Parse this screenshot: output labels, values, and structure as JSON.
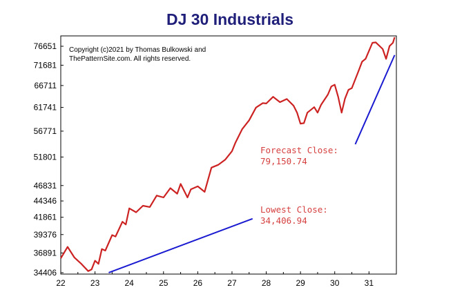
{
  "chart_data": {
    "type": "line",
    "title": "DJ 30 Industrials",
    "copyright": [
      "Copyright (c)2021 by Thomas Bulkowski and",
      "ThePatternSite.com. All rights reserved."
    ],
    "x_tick_labels": [
      "22",
      "23",
      "24",
      "25",
      "26",
      "27",
      "28",
      "29",
      "30",
      "31"
    ],
    "y_tick_labels": [
      "76651",
      "71681",
      "66711",
      "61741",
      "56771",
      "51801",
      "46831",
      "44346",
      "41861",
      "39376",
      "36891",
      "34406"
    ],
    "y_scale": "log",
    "ylim": [
      34406,
      76651
    ],
    "xlim": [
      22,
      31.8
    ],
    "grid": false,
    "series": [
      {
        "values": [
          [
            22.0,
            36200
          ],
          [
            22.2,
            37700
          ],
          [
            22.4,
            36300
          ],
          [
            22.6,
            35500
          ],
          [
            22.8,
            34600
          ],
          [
            22.9,
            34800
          ],
          [
            23.0,
            35900
          ],
          [
            23.1,
            35500
          ],
          [
            23.2,
            37400
          ],
          [
            23.3,
            37200
          ],
          [
            23.5,
            39300
          ],
          [
            23.6,
            39100
          ],
          [
            23.8,
            41200
          ],
          [
            23.9,
            40800
          ],
          [
            24.0,
            43200
          ],
          [
            24.2,
            42600
          ],
          [
            24.4,
            43600
          ],
          [
            24.6,
            43400
          ],
          [
            24.8,
            45200
          ],
          [
            25.0,
            44900
          ],
          [
            25.2,
            46400
          ],
          [
            25.4,
            45500
          ],
          [
            25.5,
            47100
          ],
          [
            25.7,
            44900
          ],
          [
            25.8,
            46200
          ],
          [
            26.0,
            46700
          ],
          [
            26.2,
            45800
          ],
          [
            26.4,
            49900
          ],
          [
            26.6,
            50400
          ],
          [
            26.8,
            51300
          ],
          [
            27.0,
            52900
          ],
          [
            27.1,
            54500
          ],
          [
            27.3,
            57200
          ],
          [
            27.5,
            59000
          ],
          [
            27.7,
            61700
          ],
          [
            27.9,
            62700
          ],
          [
            28.0,
            62600
          ],
          [
            28.2,
            64100
          ],
          [
            28.4,
            62900
          ],
          [
            28.6,
            63600
          ],
          [
            28.8,
            62100
          ],
          [
            28.9,
            60600
          ],
          [
            29.0,
            58300
          ],
          [
            29.1,
            58400
          ],
          [
            29.2,
            60600
          ],
          [
            29.4,
            61800
          ],
          [
            29.5,
            60600
          ],
          [
            29.6,
            62300
          ],
          [
            29.8,
            64600
          ],
          [
            29.9,
            66500
          ],
          [
            30.0,
            66900
          ],
          [
            30.1,
            64100
          ],
          [
            30.2,
            60600
          ],
          [
            30.3,
            63700
          ],
          [
            30.4,
            65700
          ],
          [
            30.5,
            66100
          ],
          [
            30.7,
            70300
          ],
          [
            30.8,
            72600
          ],
          [
            30.9,
            73300
          ],
          [
            31.1,
            77600
          ],
          [
            31.2,
            77700
          ],
          [
            31.4,
            75900
          ],
          [
            31.5,
            73300
          ],
          [
            31.6,
            76700
          ],
          [
            31.7,
            77600
          ],
          [
            31.75,
            79150.74
          ]
        ]
      }
    ],
    "trendlines": [
      {
        "from": [
          23.4,
          34406.94
        ],
        "to": [
          27.6,
          41650
        ]
      },
      {
        "from": [
          30.6,
          54200
        ],
        "to": [
          31.75,
          74300
        ]
      }
    ],
    "annotations": [
      {
        "lines": [
          "Forecast Close:",
          "79,150.74"
        ]
      },
      {
        "lines": [
          "Lowest Close:",
          "34,406.94"
        ]
      }
    ],
    "colors": {
      "price_line": "#cc2222",
      "trend_line": "#1a1ad0",
      "annotation": "#d64040",
      "title": "#1f1f7a"
    }
  }
}
